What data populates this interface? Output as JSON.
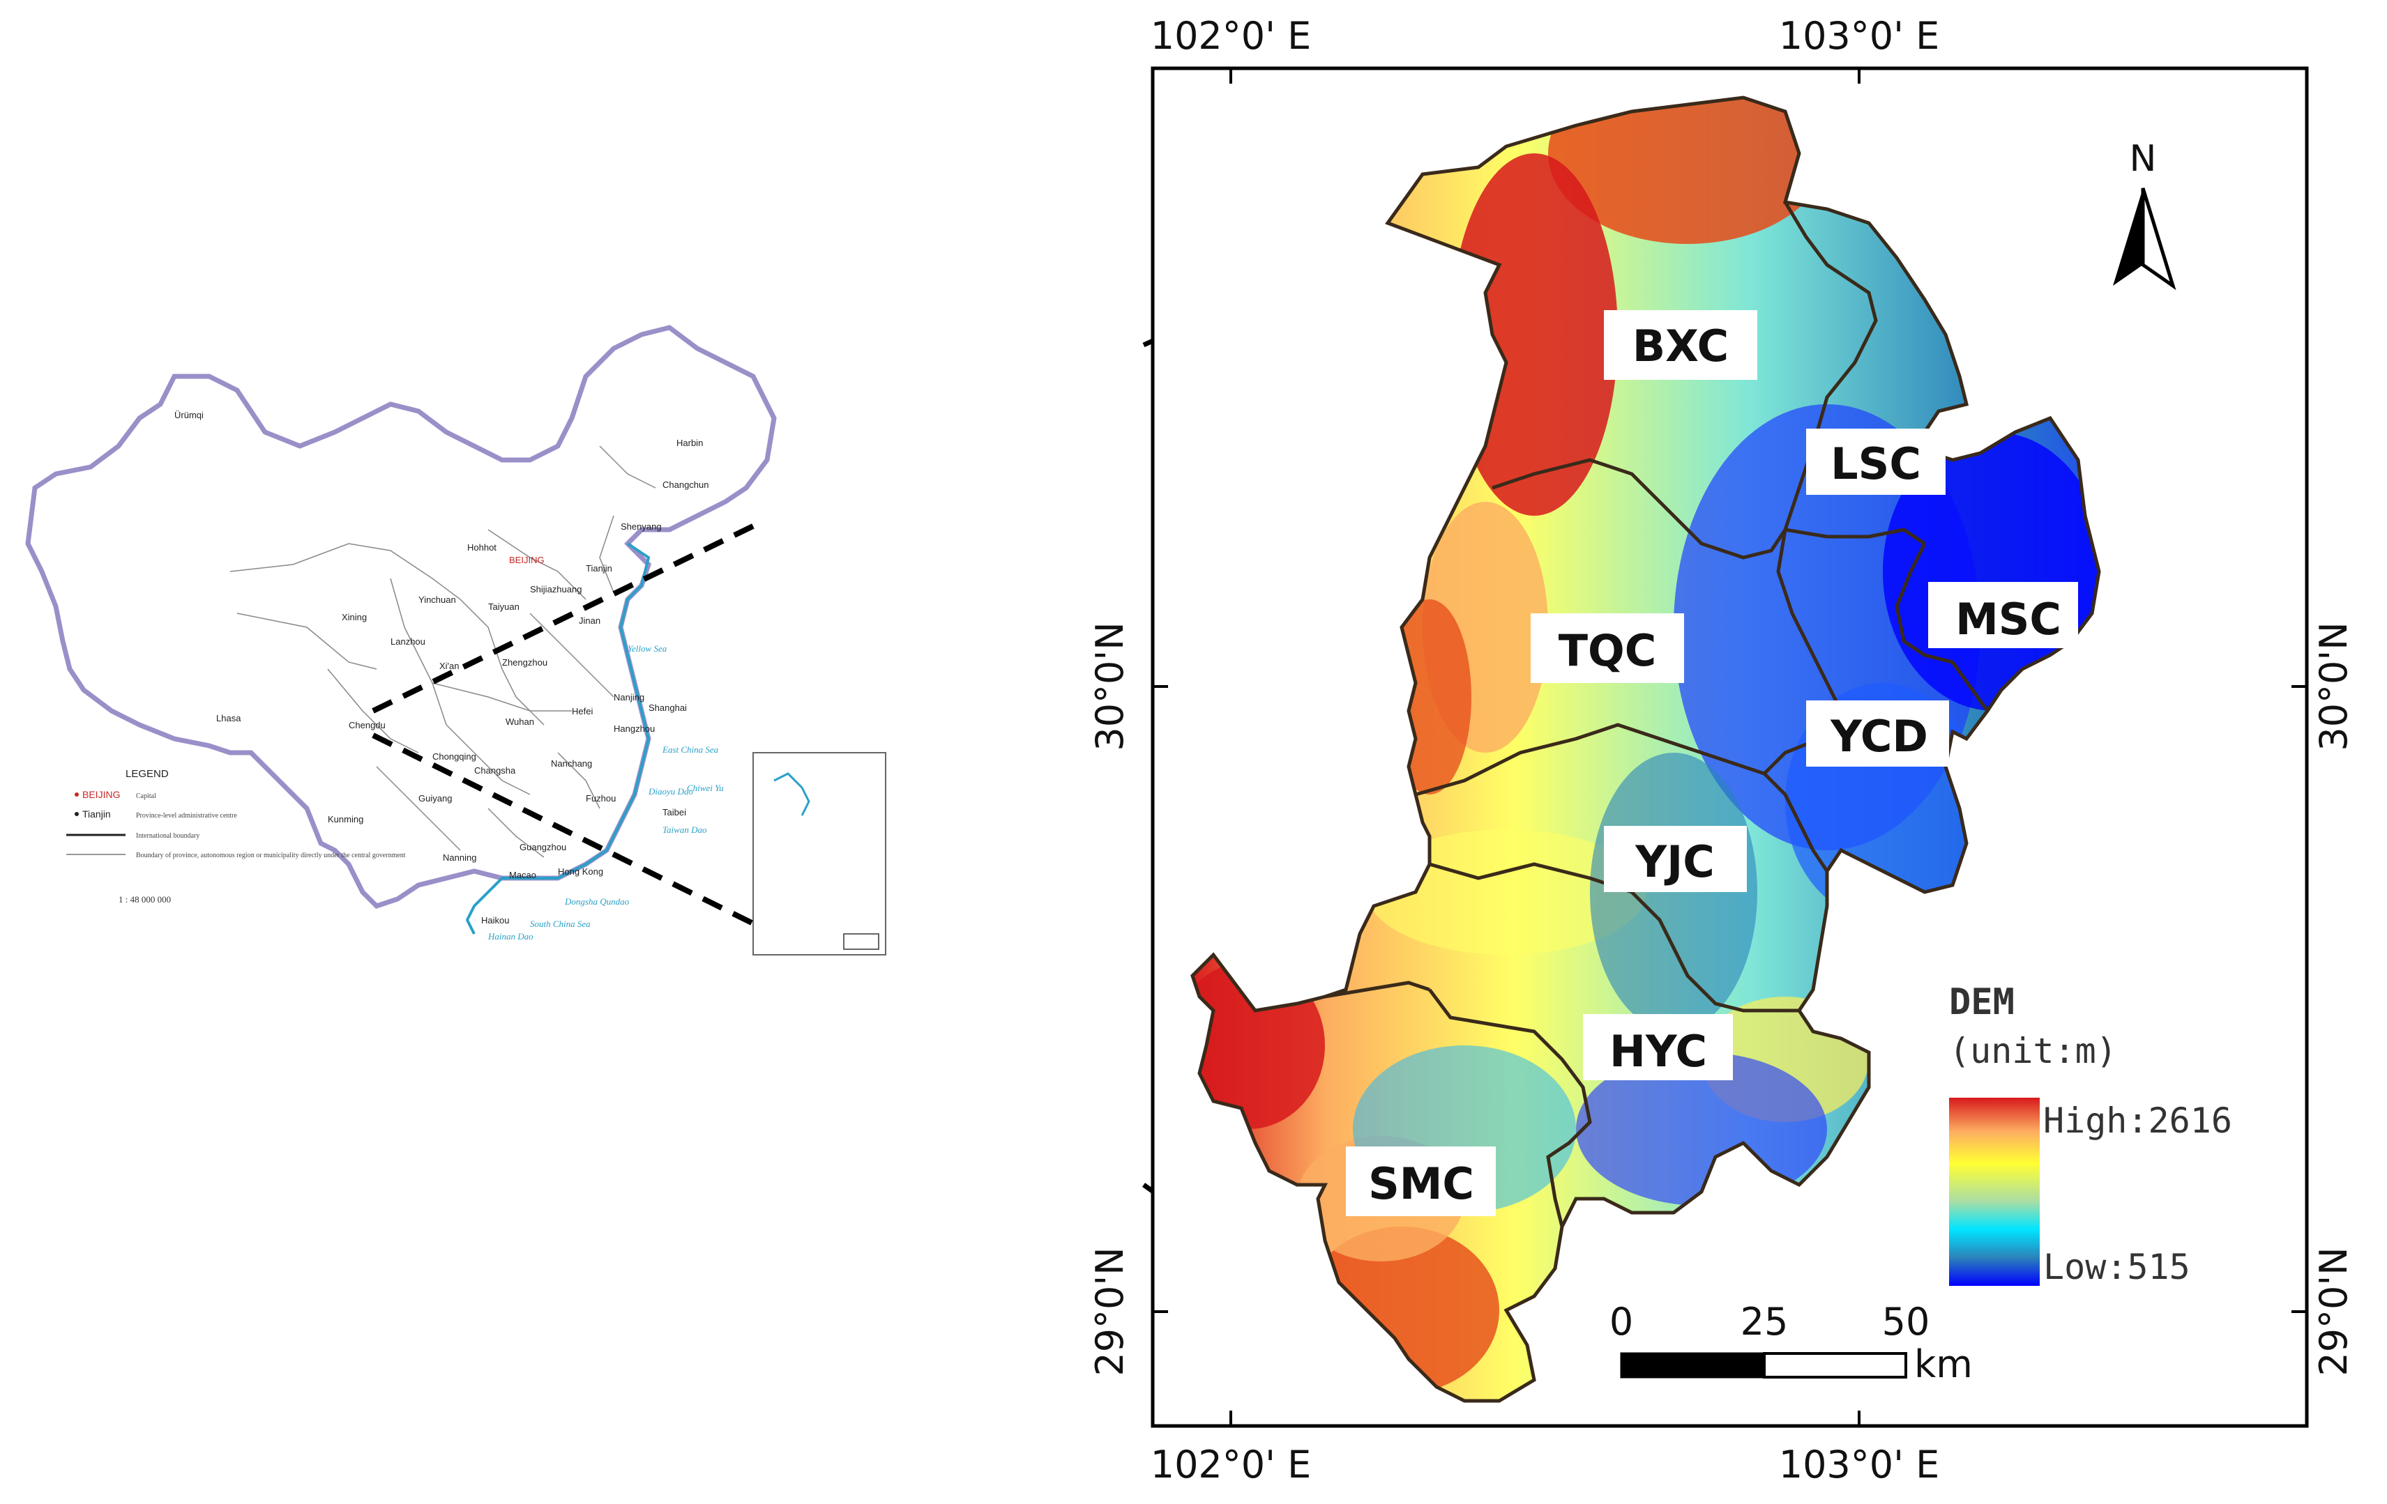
{
  "inset_map": {
    "cities": [
      "Ürümqi",
      "Harbin",
      "Changchun",
      "Shenyang",
      "Hohhot",
      "BEIJING",
      "Tianjin",
      "Shijiazhuang",
      "Yinchuan",
      "Taiyuan",
      "Xining",
      "Lanzhou",
      "Jinan",
      "Xi'an",
      "Zhengzhou",
      "Yellow Sea",
      "Nanjing",
      "Hefei",
      "Shanghai",
      "Wuhan",
      "Hangzhou",
      "Lhasa",
      "Chengdu",
      "Chongqing",
      "Changsha",
      "Nanchang",
      "East China Sea",
      "Fuzhou",
      "Guiyang",
      "Taibei",
      "Kunming",
      "Nanning",
      "Guangzhou",
      "Macao",
      "Hong Kong",
      "Haikou",
      "South China Sea",
      "Hainan Dao",
      "Dongsha Qundao",
      "Diaoyu Dao",
      "Chiwei Yu",
      "Taiwan Dao"
    ],
    "legend": {
      "title": "LEGEND",
      "items": [
        {
          "label": "BEIJING",
          "desc": "Capital"
        },
        {
          "label": "Tianjin",
          "desc": "Province-level administrative centre"
        },
        {
          "label": "",
          "desc": "International boundary"
        },
        {
          "label": "",
          "desc": "Boundary of province, autonomous region or municipality directly under the central government"
        }
      ],
      "scale": "1 : 48 000 000"
    }
  },
  "main_map": {
    "regions": [
      {
        "code": "BXC"
      },
      {
        "code": "LSC"
      },
      {
        "code": "MSC"
      },
      {
        "code": "TQC"
      },
      {
        "code": "YCD"
      },
      {
        "code": "YJC"
      },
      {
        "code": "HYC"
      },
      {
        "code": "SMC"
      }
    ],
    "coords": {
      "top": [
        "102°0' E",
        "103°0' E"
      ],
      "bottom": [
        "102°0' E",
        "103°0' E"
      ],
      "left": [
        "30°0'N",
        "29°0'N"
      ],
      "right": [
        "30°0'N",
        "29°0'N"
      ]
    },
    "north_label": "N",
    "legend": {
      "title": "DEM",
      "unit": "(unit:m)",
      "high": "High:2616",
      "low": "Low:515",
      "colors": [
        "#d7191c",
        "#fdae61",
        "#ffff33",
        "#abdda4",
        "#00e5ff",
        "#2b83ba",
        "#0000ff"
      ]
    },
    "scale": {
      "ticks": [
        "0",
        "25",
        "50"
      ],
      "unit": "km"
    }
  }
}
